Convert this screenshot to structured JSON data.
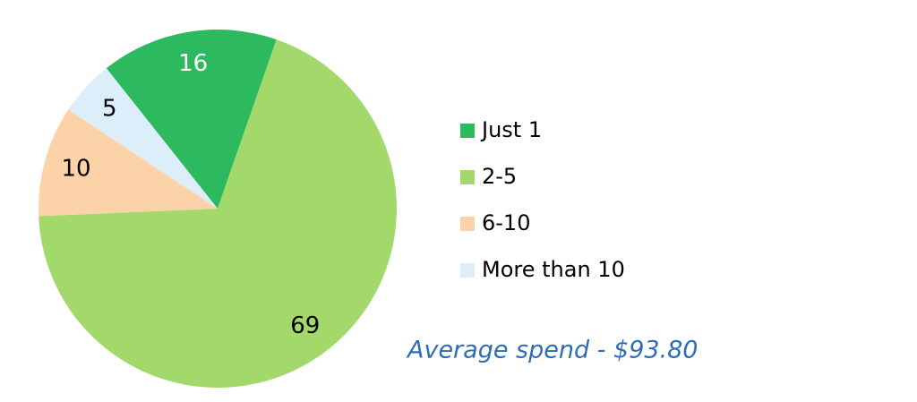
{
  "chart_data": {
    "type": "pie",
    "categories": [
      "Just 1",
      "2-5",
      "6-10",
      "More than 10"
    ],
    "values": [
      16,
      69,
      10,
      5
    ],
    "colors": [
      "#2dba5e",
      "#a3d96a",
      "#fcd3a8",
      "#dbeefa"
    ],
    "annotation": "Average spend - $93.80"
  }
}
